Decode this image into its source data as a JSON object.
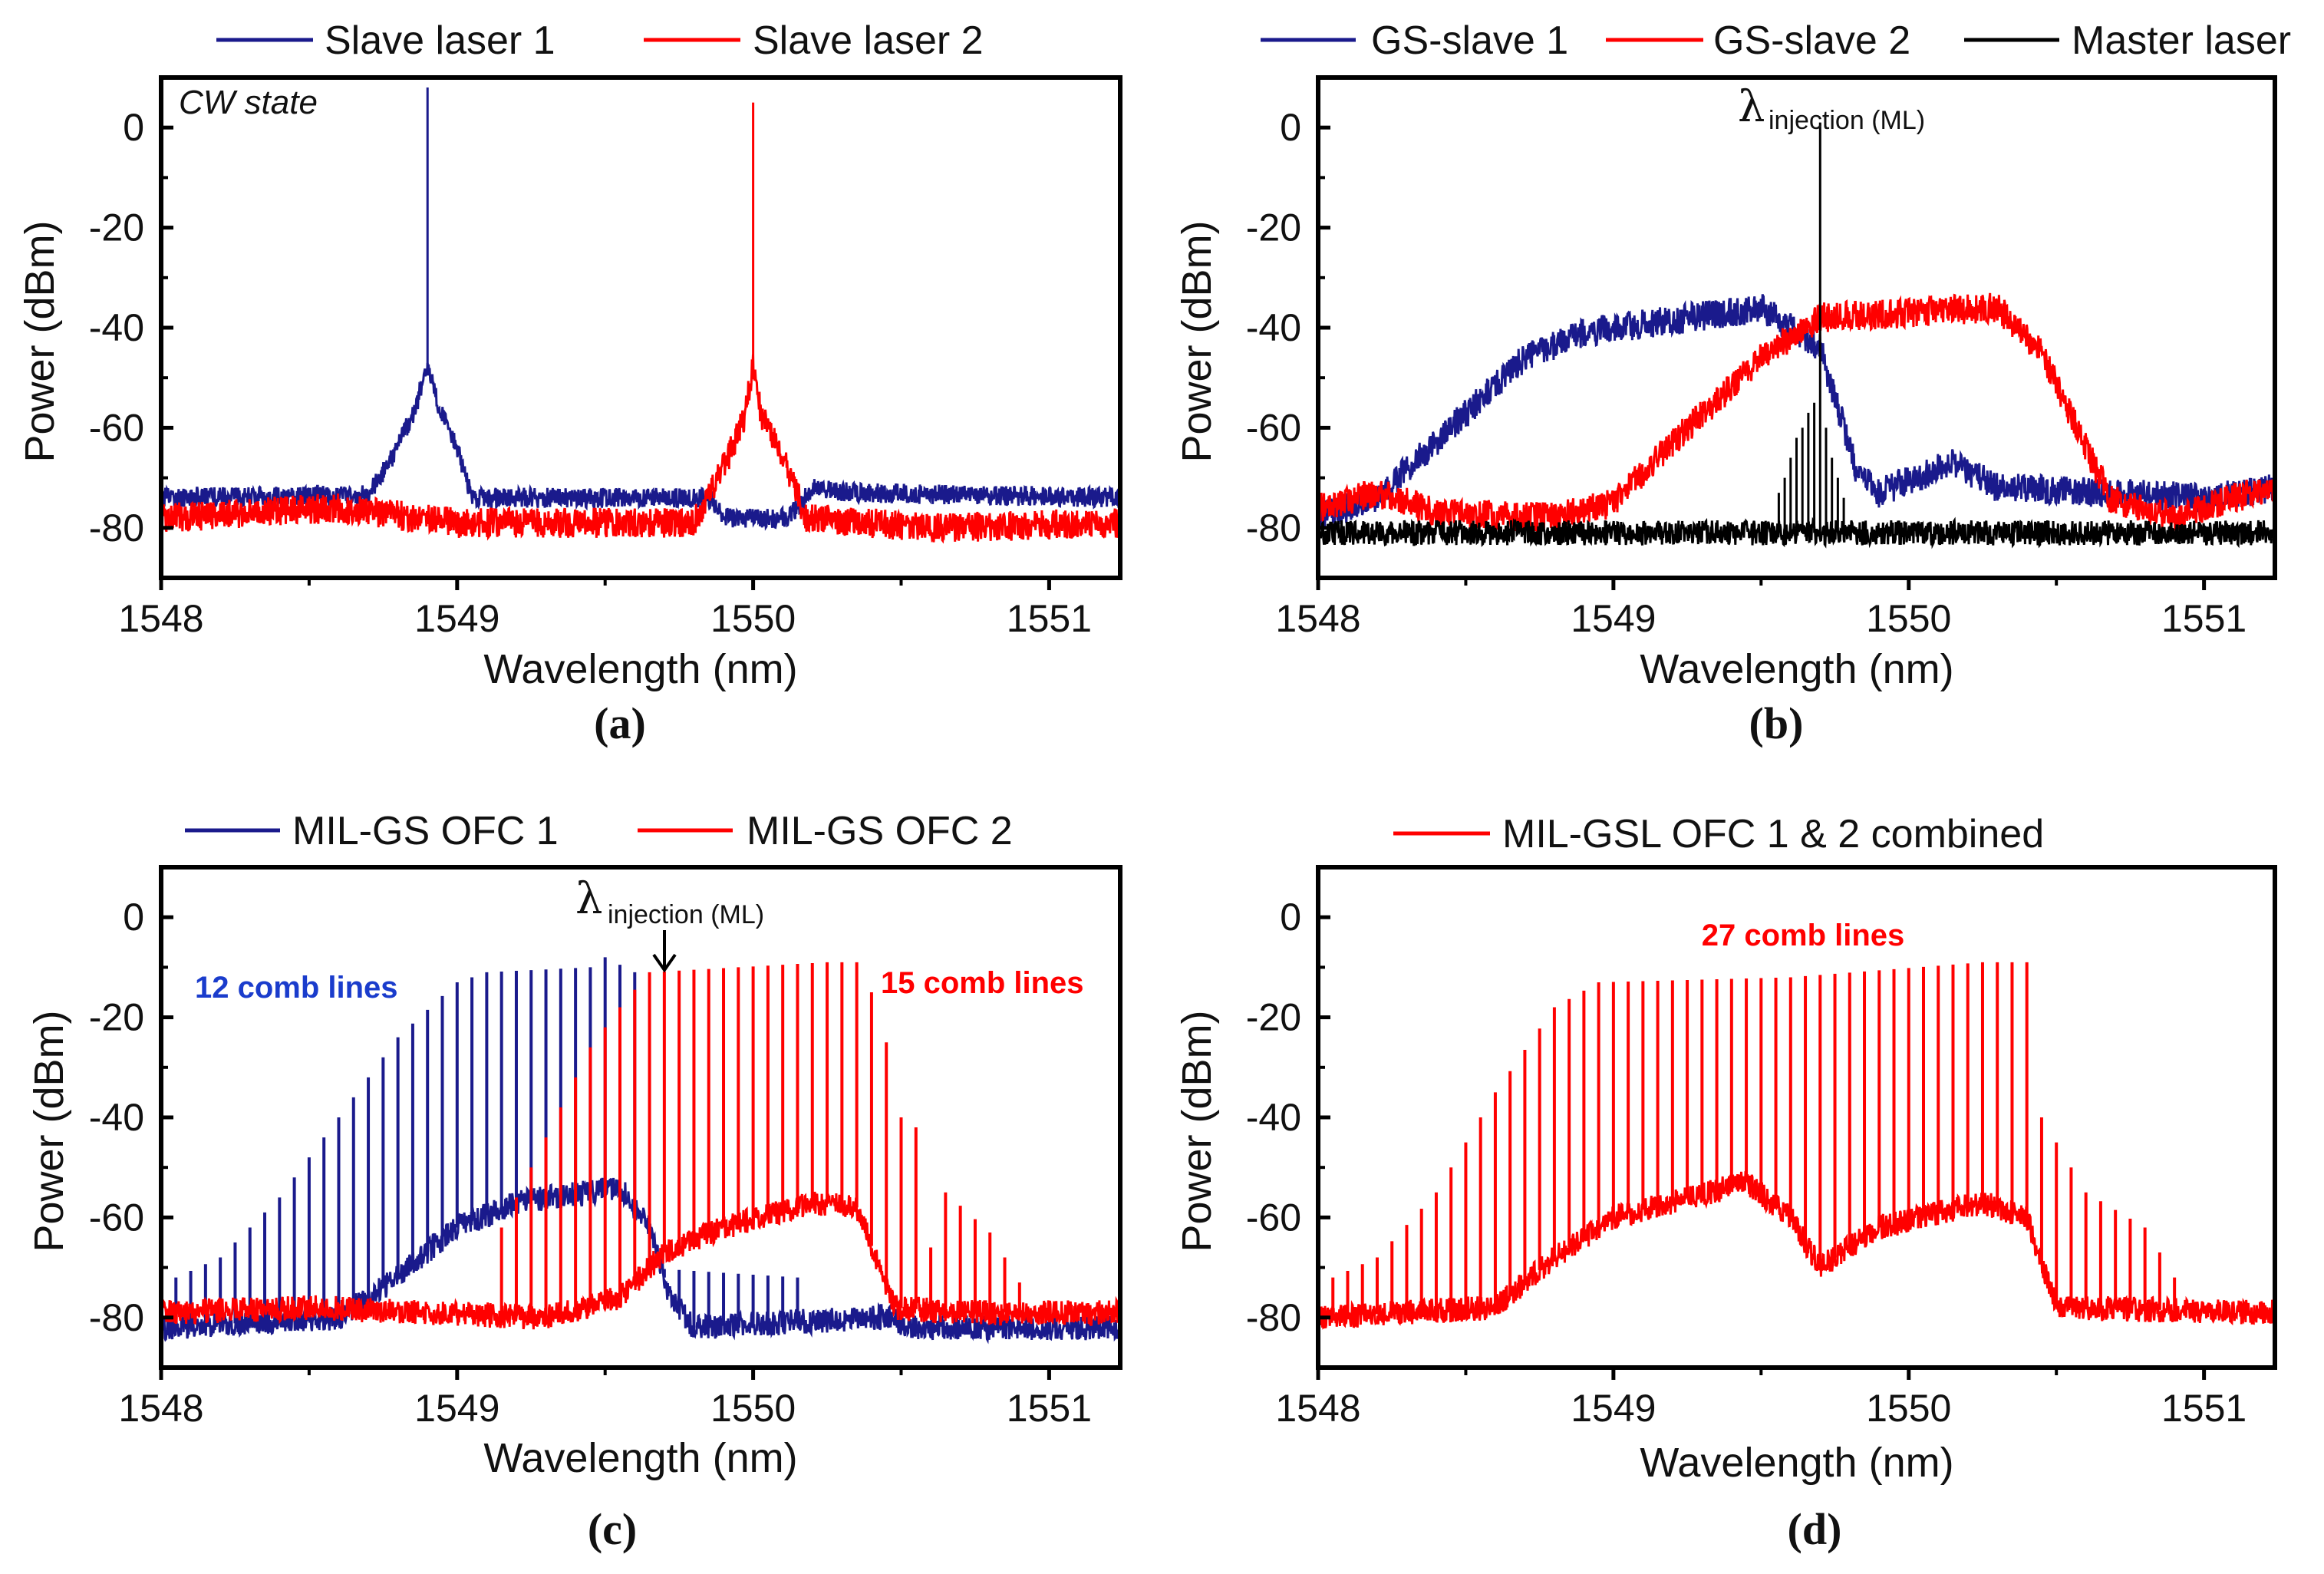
{
  "colors": {
    "blue": "#1a1a8c",
    "red": "#ff0000",
    "black": "#000000"
  },
  "chart_data": [
    {
      "type": "line",
      "panel_label": "(a)",
      "xlabel": "Wavelength (nm)",
      "ylabel": "Power (dBm)",
      "xlim": [
        1548,
        1551.24
      ],
      "ylim": [
        -90,
        10
      ],
      "xticks": [
        "1548",
        "1549",
        "1550",
        "1551"
      ],
      "yticks": [
        "0",
        "-20",
        "-40",
        "-60",
        "-80"
      ],
      "annotations": [
        {
          "text": "CW state"
        }
      ],
      "series": [
        {
          "name": "Slave laser 1",
          "color": "#1a1a8c",
          "noise_db": 2,
          "envelope": [
            [
              1548,
              -74
            ],
            [
              1548.7,
              -73.5
            ],
            [
              1548.78,
              -66
            ],
            [
              1548.86,
              -56
            ],
            [
              1548.9,
              -48
            ],
            [
              1548.94,
              -56
            ],
            [
              1549.0,
              -64
            ],
            [
              1549.05,
              -74
            ],
            [
              1549.85,
              -74
            ],
            [
              1549.9,
              -78
            ],
            [
              1550.12,
              -78
            ],
            [
              1550.2,
              -72
            ],
            [
              1550.35,
              -73
            ],
            [
              1551.24,
              -74
            ]
          ],
          "peaks": [
            [
              1548.9,
              8
            ]
          ]
        },
        {
          "name": "Slave laser 2",
          "color": "#ff0000",
          "noise_db": 3,
          "envelope": [
            [
              1548,
              -78
            ],
            [
              1548.6,
              -76
            ],
            [
              1549.0,
              -79
            ],
            [
              1549.8,
              -79
            ],
            [
              1549.9,
              -68
            ],
            [
              1549.97,
              -58
            ],
            [
              1550.0,
              -48
            ],
            [
              1550.03,
              -58
            ],
            [
              1550.1,
              -66
            ],
            [
              1550.18,
              -78
            ],
            [
              1550.6,
              -80
            ],
            [
              1551.24,
              -79
            ]
          ],
          "peaks": [
            [
              1550.0,
              5
            ]
          ]
        }
      ]
    },
    {
      "type": "line",
      "panel_label": "(b)",
      "xlabel": "Wavelength (nm)",
      "ylabel": "Power (dBm)",
      "xlim": [
        1548,
        1551.24
      ],
      "ylim": [
        -90,
        10
      ],
      "xticks": [
        "1548",
        "1549",
        "1550",
        "1551"
      ],
      "yticks": [
        "0",
        "-20",
        "-40",
        "-60",
        "-80"
      ],
      "annotations": [
        {
          "symbol": "λ",
          "text": "injection (ML)"
        }
      ],
      "series": [
        {
          "name": "GS-slave 1",
          "color": "#1a1a8c",
          "noise_db": 3,
          "envelope": [
            [
              1548.0,
              -78
            ],
            [
              1548.2,
              -74
            ],
            [
              1548.45,
              -60
            ],
            [
              1548.7,
              -46
            ],
            [
              1548.9,
              -41
            ],
            [
              1549.5,
              -36
            ],
            [
              1549.7,
              -44
            ],
            [
              1549.82,
              -68
            ],
            [
              1549.9,
              -73
            ],
            [
              1550.15,
              -67
            ],
            [
              1550.3,
              -72
            ],
            [
              1551.0,
              -74
            ],
            [
              1551.24,
              -72
            ]
          ],
          "peaks": []
        },
        {
          "name": "GS-slave 2",
          "color": "#ff0000",
          "noise_db": 3,
          "envelope": [
            [
              1548,
              -76
            ],
            [
              1548.2,
              -73
            ],
            [
              1548.4,
              -77
            ],
            [
              1548.8,
              -78
            ],
            [
              1549.0,
              -75
            ],
            [
              1549.2,
              -63
            ],
            [
              1549.5,
              -46
            ],
            [
              1549.7,
              -38
            ],
            [
              1550.3,
              -36
            ],
            [
              1550.45,
              -45
            ],
            [
              1550.68,
              -74
            ],
            [
              1550.9,
              -78
            ],
            [
              1551.1,
              -74
            ],
            [
              1551.24,
              -72
            ]
          ],
          "peaks": []
        },
        {
          "name": "Master laser",
          "color": "#000000",
          "noise_db": 2.5,
          "envelope": [
            [
              1548,
              -81
            ],
            [
              1551.24,
              -81
            ]
          ],
          "peaks": [
            [
              1549.56,
              -73
            ],
            [
              1549.58,
              -70
            ],
            [
              1549.6,
              -66
            ],
            [
              1549.62,
              -62
            ],
            [
              1549.64,
              -60
            ],
            [
              1549.66,
              -57
            ],
            [
              1549.68,
              -55
            ],
            [
              1549.7,
              1
            ],
            [
              1549.72,
              -60
            ],
            [
              1549.74,
              -66
            ],
            [
              1549.76,
              -70
            ],
            [
              1549.78,
              -74
            ]
          ]
        }
      ]
    },
    {
      "type": "line",
      "panel_label": "(c)",
      "xlabel": "Wavelength (nm)",
      "ylabel": "Power (dBm)",
      "xlim": [
        1548,
        1551.24
      ],
      "ylim": [
        -90,
        10
      ],
      "xticks": [
        "1548",
        "1549",
        "1550",
        "1551"
      ],
      "yticks": [
        "0",
        "-20",
        "-40",
        "-60",
        "-80"
      ],
      "annotations": [
        {
          "symbol": "λ",
          "text": "injection (ML)"
        },
        {
          "text": "12 comb lines",
          "color": "#1a3ccc"
        },
        {
          "text": "15 comb lines",
          "color": "#ff0000"
        }
      ],
      "comb_spacing_nm": 0.05,
      "series": [
        {
          "name": "MIL-GS OFC 1",
          "color": "#1a1a8c",
          "noise_db": 2.5,
          "envelope": [
            [
              1548,
              -82
            ],
            [
              1548.6,
              -80
            ],
            [
              1548.75,
              -74
            ],
            [
              1549.0,
              -62
            ],
            [
              1549.2,
              -57
            ],
            [
              1549.55,
              -54
            ],
            [
              1549.65,
              -62
            ],
            [
              1549.72,
              -76
            ],
            [
              1549.8,
              -82
            ],
            [
              1550.4,
              -80
            ],
            [
              1550.48,
              -80
            ],
            [
              1550.5,
              -82
            ],
            [
              1551.24,
              -82
            ]
          ],
          "comb_envelope": [
            [
              1548.05,
              -72
            ],
            [
              1548.2,
              -68
            ],
            [
              1548.4,
              -56
            ],
            [
              1548.6,
              -40
            ],
            [
              1548.8,
              -24
            ],
            [
              1549.0,
              -13
            ],
            [
              1549.1,
              -11
            ],
            [
              1549.45,
              -10
            ],
            [
              1549.5,
              -8
            ],
            [
              1549.6,
              -11
            ],
            [
              1549.62,
              -70
            ],
            [
              1550.15,
              -72
            ]
          ]
        },
        {
          "name": "MIL-GS OFC 2",
          "color": "#ff0000",
          "noise_db": 2.5,
          "envelope": [
            [
              1548,
              -79
            ],
            [
              1548.5,
              -78
            ],
            [
              1549.3,
              -80
            ],
            [
              1549.55,
              -76
            ],
            [
              1549.7,
              -67
            ],
            [
              1549.9,
              -62
            ],
            [
              1550.2,
              -57
            ],
            [
              1550.35,
              -58
            ],
            [
              1550.48,
              -78
            ],
            [
              1550.7,
              -79
            ],
            [
              1551.24,
              -79
            ]
          ],
          "comb_envelope": [
            [
              1549.15,
              -62
            ],
            [
              1549.3,
              -44
            ],
            [
              1549.45,
              -26
            ],
            [
              1549.55,
              -18
            ],
            [
              1549.65,
              -11
            ],
            [
              1550.25,
              -9
            ],
            [
              1550.35,
              -9
            ],
            [
              1550.4,
              -15
            ],
            [
              1550.45,
              -25
            ],
            [
              1550.5,
              -40
            ],
            [
              1550.55,
              -42
            ],
            [
              1550.6,
              -66
            ],
            [
              1550.65,
              -55
            ],
            [
              1550.8,
              -63
            ],
            [
              1550.9,
              -73
            ]
          ]
        }
      ]
    },
    {
      "type": "line",
      "panel_label": "(d)",
      "xlabel": "Wavelength (nm)",
      "ylabel": "Power (dBm)",
      "xlim": [
        1548,
        1551.24
      ],
      "ylim": [
        -90,
        10
      ],
      "xticks": [
        "1548",
        "1549",
        "1550",
        "1551"
      ],
      "yticks": [
        "0",
        "-20",
        "-40",
        "-60",
        "-80"
      ],
      "annotations": [
        {
          "text": "27 comb lines",
          "color": "#ff0000"
        }
      ],
      "comb_spacing_nm": 0.05,
      "series": [
        {
          "name": "MIL-GSL OFC 1 & 2 combined",
          "color": "#ff0000",
          "noise_db": 2.5,
          "envelope": [
            [
              1548,
              -80
            ],
            [
              1548.6,
              -78
            ],
            [
              1548.8,
              -68
            ],
            [
              1549.0,
              -60
            ],
            [
              1549.45,
              -53
            ],
            [
              1549.6,
              -60
            ],
            [
              1549.7,
              -70
            ],
            [
              1549.9,
              -62
            ],
            [
              1550.25,
              -57
            ],
            [
              1550.4,
              -60
            ],
            [
              1550.5,
              -78
            ],
            [
              1551.24,
              -79
            ]
          ],
          "comb_envelope": [
            [
              1548.05,
              -72
            ],
            [
              1548.2,
              -68
            ],
            [
              1548.4,
              -55
            ],
            [
              1548.6,
              -35
            ],
            [
              1548.8,
              -18
            ],
            [
              1548.95,
              -13
            ],
            [
              1549.6,
              -12
            ],
            [
              1550.25,
              -9
            ],
            [
              1550.4,
              -9
            ],
            [
              1550.45,
              -40
            ],
            [
              1550.6,
              -55
            ],
            [
              1550.8,
              -62
            ],
            [
              1550.9,
              -72
            ]
          ]
        }
      ]
    }
  ]
}
